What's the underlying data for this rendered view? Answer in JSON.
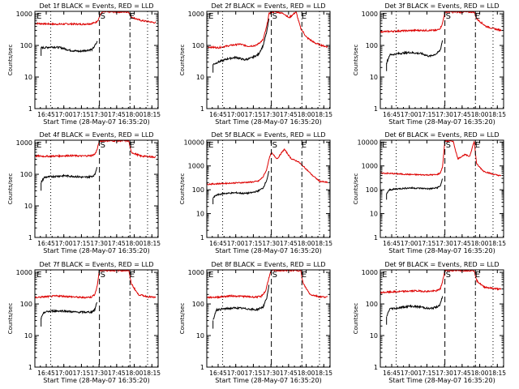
{
  "figure": {
    "panel_titles": [
      "Det 1f BLACK = Events, RED = LLD",
      "Det 2f BLACK = Events, RED = LLD",
      "Det 3f BLACK = Events, RED = LLD",
      "Det 4f BLACK = Events, RED = LLD",
      "Det 5f BLACK = Events, RED = LLD",
      "Det 6f BLACK = Events, RED = LLD",
      "Det 7f BLACK = Events, RED = LLD",
      "Det 8f BLACK = Events, RED = LLD",
      "Det 9f BLACK = Events, RED = LLD"
    ]
  },
  "colors": {
    "events": "#000000",
    "lld": "#dd0000",
    "axes": "#000000"
  },
  "chart_data": {
    "type": "line",
    "y_scale": "log",
    "xlabel": "Start Time (28-May-07 16:35:20)",
    "ylabel": "Counts/sec",
    "x_ticks": [
      "16:45",
      "17:00",
      "17:15",
      "17:30",
      "17:45",
      "18:00",
      "18:15"
    ],
    "x_tick_minutes": [
      9.67,
      24.67,
      39.67,
      54.67,
      69.67,
      84.67,
      99.67
    ],
    "xlim_minutes": [
      0,
      105
    ],
    "series_names": [
      "Events",
      "LLD"
    ],
    "markers": [
      {
        "label": "E",
        "minute": 0.8,
        "style": "solid"
      },
      {
        "label": "S",
        "minute": 55,
        "style": "dashed"
      },
      {
        "label": "E",
        "minute": 80,
        "style": "solid"
      }
    ],
    "vlines": [
      {
        "minute": 13.5,
        "style": "dotted"
      },
      {
        "minute": 55,
        "style": "dashed"
      },
      {
        "minute": 81,
        "style": "dashdot"
      },
      {
        "minute": 96,
        "style": "dotted"
      }
    ],
    "panels": [
      {
        "detector": "1f",
        "y_ticks": [
          1,
          10,
          100,
          1000
        ],
        "ylim": [
          1,
          1200
        ],
        "events": {
          "x": [
            5.3,
            8,
            15,
            22,
            30,
            38,
            44,
            49,
            52,
            53.5
          ],
          "y": [
            85,
            85,
            90,
            85,
            70,
            65,
            70,
            75,
            110,
            140
          ]
        },
        "lld": {
          "x": [
            0,
            10,
            20,
            30,
            40,
            48,
            52,
            54,
            56,
            58,
            80,
            82,
            90,
            98,
            103
          ],
          "y": [
            500,
            480,
            470,
            480,
            470,
            490,
            540,
            650,
            1000,
            1150,
            1150,
            800,
            620,
            560,
            520
          ]
        }
      },
      {
        "detector": "2f",
        "y_ticks": [
          1,
          10,
          100,
          1000
        ],
        "ylim": [
          1,
          1200
        ],
        "events": {
          "x": [
            5.3,
            10,
            18,
            25,
            32,
            38,
            44,
            48,
            51,
            53
          ],
          "y": [
            25,
            30,
            38,
            42,
            35,
            40,
            52,
            100,
            260,
            700
          ]
        },
        "lld": {
          "x": [
            0,
            10,
            20,
            28,
            35,
            42,
            48,
            51,
            53,
            55,
            60,
            66,
            70,
            76,
            80,
            85,
            92,
            100,
            103
          ],
          "y": [
            90,
            85,
            100,
            110,
            95,
            100,
            150,
            400,
            1000,
            1150,
            1150,
            1000,
            750,
            1150,
            350,
            180,
            120,
            95,
            90
          ]
        }
      },
      {
        "detector": "3f",
        "y_ticks": [
          1,
          10,
          100,
          1000
        ],
        "ylim": [
          1,
          1200
        ],
        "events": {
          "x": [
            5.3,
            8,
            15,
            25,
            35,
            42,
            48,
            51,
            53
          ],
          "y": [
            28,
            50,
            55,
            60,
            55,
            45,
            55,
            70,
            150
          ]
        },
        "lld": {
          "x": [
            0,
            10,
            20,
            30,
            40,
            48,
            51,
            53,
            55,
            80,
            82,
            90,
            98,
            103
          ],
          "y": [
            270,
            280,
            290,
            300,
            300,
            300,
            350,
            500,
            1150,
            1150,
            700,
            400,
            330,
            300
          ]
        }
      },
      {
        "detector": "4f",
        "y_ticks": [
          1,
          10,
          100,
          1000
        ],
        "ylim": [
          1,
          1200
        ],
        "events": {
          "x": [
            5.3,
            8,
            15,
            25,
            35,
            42,
            48,
            51,
            53
          ],
          "y": [
            55,
            80,
            85,
            90,
            85,
            80,
            85,
            95,
            180
          ]
        },
        "lld": {
          "x": [
            0,
            10,
            20,
            30,
            40,
            48,
            51,
            53,
            55,
            80,
            82,
            90,
            98,
            103
          ],
          "y": [
            380,
            370,
            380,
            390,
            380,
            390,
            430,
            600,
            1150,
            1150,
            500,
            380,
            360,
            350
          ]
        }
      },
      {
        "detector": "5f",
        "y_ticks": [
          1,
          10,
          100,
          1000,
          10000
        ],
        "ylim": [
          1,
          12000
        ],
        "events": {
          "x": [
            5.3,
            8,
            15,
            25,
            32,
            38,
            44,
            48,
            51,
            53
          ],
          "y": [
            45,
            60,
            70,
            75,
            70,
            75,
            90,
            120,
            250,
            600
          ]
        },
        "lld": {
          "x": [
            0,
            10,
            20,
            30,
            38,
            44,
            48,
            51,
            53,
            55,
            60,
            66,
            72,
            78,
            84,
            90,
            96,
            103
          ],
          "y": [
            170,
            180,
            190,
            200,
            210,
            230,
            350,
            700,
            2000,
            3500,
            2000,
            5000,
            2000,
            1500,
            800,
            400,
            230,
            200
          ]
        }
      },
      {
        "detector": "6f",
        "y_ticks": [
          1,
          10,
          100,
          1000,
          10000
        ],
        "ylim": [
          1,
          12000
        ],
        "events": {
          "x": [
            5.3,
            8,
            15,
            25,
            35,
            42,
            48,
            51,
            53
          ],
          "y": [
            70,
            100,
            110,
            120,
            115,
            110,
            120,
            140,
            300
          ]
        },
        "lld": {
          "x": [
            0,
            10,
            20,
            30,
            40,
            48,
            51,
            53,
            55,
            62,
            66,
            72,
            76,
            80,
            82,
            88,
            96,
            103
          ],
          "y": [
            500,
            480,
            450,
            430,
            420,
            430,
            500,
            900,
            11000,
            11000,
            2000,
            3000,
            2500,
            11000,
            1200,
            600,
            450,
            380
          ]
        }
      },
      {
        "detector": "7f",
        "y_ticks": [
          1,
          10,
          100,
          1000
        ],
        "ylim": [
          1,
          1200
        ],
        "events": {
          "x": [
            5.3,
            8,
            15,
            25,
            35,
            42,
            48,
            51,
            53
          ],
          "y": [
            35,
            55,
            60,
            60,
            55,
            55,
            55,
            65,
            120
          ]
        },
        "lld": {
          "x": [
            0,
            10,
            20,
            30,
            40,
            48,
            51,
            53,
            55,
            80,
            82,
            88,
            96,
            103
          ],
          "y": [
            160,
            170,
            180,
            170,
            160,
            165,
            200,
            350,
            1150,
            1150,
            450,
            200,
            170,
            160
          ]
        }
      },
      {
        "detector": "8f",
        "y_ticks": [
          1,
          10,
          100,
          1000
        ],
        "ylim": [
          1,
          1200
        ],
        "events": {
          "x": [
            5.3,
            8,
            15,
            25,
            35,
            42,
            48,
            51,
            53
          ],
          "y": [
            30,
            65,
            70,
            75,
            70,
            65,
            80,
            150,
            400
          ]
        },
        "lld": {
          "x": [
            0,
            10,
            20,
            30,
            40,
            46,
            50,
            53,
            55,
            80,
            82,
            88,
            96,
            103
          ],
          "y": [
            160,
            165,
            180,
            175,
            165,
            170,
            250,
            700,
            1150,
            1150,
            450,
            200,
            170,
            165
          ]
        }
      },
      {
        "detector": "9f",
        "y_ticks": [
          1,
          10,
          100,
          1000
        ],
        "ylim": [
          1,
          1200
        ],
        "events": {
          "x": [
            5.3,
            8,
            15,
            25,
            35,
            42,
            48,
            51,
            53
          ],
          "y": [
            40,
            70,
            75,
            85,
            80,
            70,
            80,
            95,
            180
          ]
        },
        "lld": {
          "x": [
            0,
            10,
            20,
            30,
            40,
            48,
            51,
            53,
            55,
            80,
            82,
            88,
            96,
            103
          ],
          "y": [
            230,
            240,
            250,
            260,
            250,
            260,
            300,
            500,
            1150,
            1150,
            550,
            350,
            310,
            290
          ]
        }
      }
    ]
  }
}
